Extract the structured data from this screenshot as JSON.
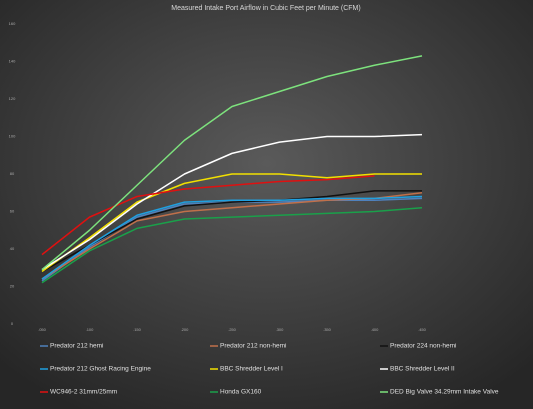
{
  "chart_data": {
    "type": "line",
    "title": "Measured Intake Port Airflow in Cubic Feet per Minute (CFM)",
    "categories": [
      ".050",
      ".100",
      ".150",
      ".200",
      ".250",
      ".300",
      ".350",
      ".400",
      ".450"
    ],
    "ylim": [
      0,
      160
    ],
    "yticks": [
      0,
      20,
      40,
      60,
      80,
      100,
      120,
      140,
      160
    ],
    "series": [
      {
        "name": "Predator 212 hemi",
        "color": "#4f81bd",
        "values": [
          23,
          41,
          57,
          64,
          65,
          65,
          66,
          66,
          67
        ]
      },
      {
        "name": "Predator 212 non-hemi",
        "color": "#c0704a",
        "values": [
          24,
          40,
          55,
          60,
          62,
          64,
          66,
          67,
          70
        ]
      },
      {
        "name": "Predator 224 non-hemi",
        "color": "#111111",
        "values": [
          28,
          42,
          56,
          63,
          65,
          66,
          68,
          71,
          71
        ]
      },
      {
        "name": "Predator 212 Ghost Racing Engine",
        "color": "#1fa0e0",
        "values": [
          24,
          42,
          58,
          65,
          66,
          66,
          67,
          67,
          68
        ]
      },
      {
        "name": "BBC Shredder Level I",
        "color": "#f2e000",
        "values": [
          28,
          46,
          65,
          75,
          80,
          80,
          78,
          80,
          80
        ]
      },
      {
        "name": "BBC Shredder Level II",
        "color": "#ffffff",
        "values": [
          29,
          45,
          64,
          80,
          91,
          97,
          100,
          100,
          101
        ]
      },
      {
        "name": "WC946-2  31mm/25mm",
        "color": "#e01010",
        "values": [
          37,
          57,
          68,
          72,
          74,
          76,
          77,
          79,
          null
        ]
      },
      {
        "name": "Honda GX160",
        "color": "#1aa04a",
        "values": [
          22,
          39,
          51,
          56,
          57,
          58,
          59,
          60,
          62
        ]
      },
      {
        "name": "DED Big Valve 34.29mm Intake Valve",
        "color": "#7de27d",
        "values": [
          29,
          50,
          74,
          98,
          116,
          124,
          132,
          138,
          143
        ]
      }
    ]
  }
}
